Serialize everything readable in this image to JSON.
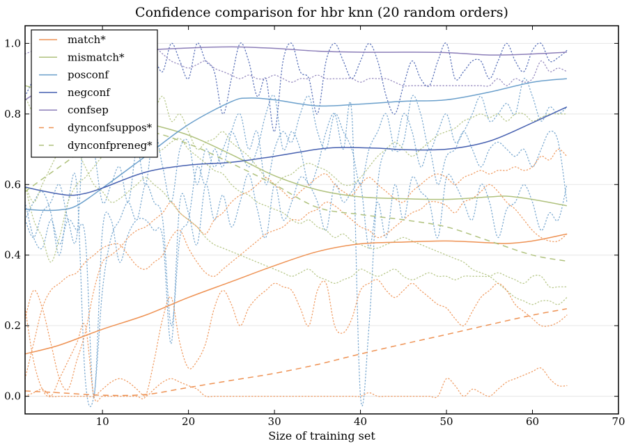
{
  "chart_data": {
    "type": "line",
    "title": "Confidence comparison for hbr knn (20 random orders)",
    "xlabel": "Size of training set",
    "ylabel": "",
    "xlim": [
      1,
      70
    ],
    "ylim": [
      -0.05,
      1.05
    ],
    "xticks": [
      10,
      20,
      30,
      40,
      50,
      60,
      70
    ],
    "yticks": [
      0.0,
      0.2,
      0.4,
      0.6,
      0.8,
      1.0
    ],
    "xtick_labels": [
      "10",
      "20",
      "30",
      "40",
      "50",
      "60",
      "70"
    ],
    "ytick_labels": [
      "0.0",
      "0.2",
      "0.4",
      "0.6",
      "0.8",
      "1.0"
    ],
    "grid": "horizontal",
    "legend_position": "top-left",
    "series": [
      {
        "name": "match*",
        "style": "solid",
        "color": "#ee9152",
        "x": [
          1,
          5,
          10,
          15,
          20,
          25,
          30,
          35,
          40,
          45,
          50,
          55,
          57,
          60,
          64
        ],
        "y": [
          0.12,
          0.145,
          0.19,
          0.23,
          0.28,
          0.325,
          0.37,
          0.41,
          0.432,
          0.437,
          0.44,
          0.435,
          0.433,
          0.44,
          0.46
        ]
      },
      {
        "name": "mismatch*",
        "style": "solid",
        "color": "#afc17c",
        "x": [
          1,
          5,
          10,
          15,
          20,
          25,
          30,
          35,
          40,
          45,
          50,
          55,
          57,
          60,
          64
        ],
        "y": [
          0.88,
          0.855,
          0.81,
          0.775,
          0.74,
          0.685,
          0.625,
          0.585,
          0.565,
          0.56,
          0.558,
          0.565,
          0.567,
          0.558,
          0.54
        ]
      },
      {
        "name": "posconf",
        "style": "solid",
        "color": "#6a9fcb",
        "x": [
          1,
          3,
          5,
          7,
          10,
          15,
          20,
          25,
          27,
          30,
          35,
          40,
          45,
          50,
          55,
          60,
          64
        ],
        "y": [
          0.53,
          0.527,
          0.528,
          0.54,
          0.59,
          0.68,
          0.77,
          0.835,
          0.845,
          0.84,
          0.823,
          0.828,
          0.836,
          0.84,
          0.862,
          0.89,
          0.9
        ]
      },
      {
        "name": "negconf",
        "style": "solid",
        "color": "#4660b0",
        "x": [
          1,
          3,
          6,
          8,
          10,
          15,
          20,
          25,
          30,
          35,
          38,
          42,
          45,
          50,
          55,
          60,
          64
        ],
        "y": [
          0.593,
          0.582,
          0.57,
          0.575,
          0.59,
          0.635,
          0.655,
          0.663,
          0.68,
          0.7,
          0.705,
          0.703,
          0.699,
          0.7,
          0.723,
          0.775,
          0.82
        ]
      },
      {
        "name": "confsep",
        "style": "solid",
        "color": "#8b7db8",
        "x": [
          1,
          5,
          8,
          12,
          15,
          20,
          25,
          30,
          35,
          40,
          45,
          50,
          55,
          60,
          64
        ],
        "y": [
          0.84,
          0.9,
          0.93,
          0.965,
          0.98,
          0.987,
          0.99,
          0.986,
          0.978,
          0.975,
          0.975,
          0.974,
          0.967,
          0.97,
          0.975
        ]
      },
      {
        "name": "dynconfsuppos*",
        "style": "dashed",
        "color": "#ee9152",
        "x": [
          1,
          5,
          10,
          15,
          20,
          25,
          30,
          35,
          40,
          45,
          50,
          55,
          60,
          64
        ],
        "y": [
          0.015,
          0.01,
          0.003,
          0.005,
          0.025,
          0.045,
          0.065,
          0.09,
          0.12,
          0.148,
          0.175,
          0.203,
          0.23,
          0.248
        ]
      },
      {
        "name": "dynconfpreneg*",
        "style": "dashed",
        "color": "#afc17c",
        "x": [
          1,
          5,
          10,
          15,
          20,
          25,
          30,
          35,
          40,
          45,
          50,
          55,
          60,
          64
        ],
        "y": [
          0.58,
          0.65,
          0.73,
          0.75,
          0.715,
          0.66,
          0.6,
          0.535,
          0.515,
          0.5,
          0.48,
          0.44,
          0.4,
          0.383
        ]
      }
    ],
    "traces": [
      {
        "color": "#6a9fcb",
        "y": [
          0.55,
          0.45,
          0.42,
          0.5,
          0.43,
          0.5,
          0.47,
          0.45,
          0.0,
          0.47,
          0.5,
          0.38,
          0.46,
          0.5,
          0.5,
          0.47,
          0.45,
          0.15,
          0.55,
          0.52,
          0.43,
          0.6,
          0.5,
          0.57,
          0.48,
          0.55,
          0.63,
          0.53,
          0.45,
          0.6,
          0.5,
          0.55,
          0.62,
          0.6,
          0.55,
          0.47,
          0.6,
          0.55,
          0.58,
          0.6,
          0.42,
          0.55,
          0.45,
          0.6,
          0.5,
          0.62,
          0.58,
          0.55,
          0.45,
          0.62,
          0.6,
          0.55,
          0.5,
          0.6,
          0.55,
          0.45,
          0.53,
          0.55,
          0.6,
          0.55,
          0.47,
          0.52,
          0.5,
          0.6
        ]
      },
      {
        "color": "#6a9fcb",
        "y": [
          0.5,
          0.45,
          0.52,
          0.55,
          0.6,
          0.5,
          0.45,
          0.8,
          0.7,
          0.55,
          0.6,
          0.65,
          0.55,
          0.7,
          0.6,
          0.75,
          0.65,
          0.55,
          0.7,
          0.72,
          0.6,
          0.7,
          0.65,
          0.7,
          0.75,
          0.7,
          0.65,
          0.7,
          0.8,
          0.85,
          0.7,
          0.75,
          0.7,
          0.6,
          0.65,
          0.75,
          0.8,
          0.7,
          0.8,
          0.0,
          0.2,
          0.6,
          0.7,
          0.7,
          0.8,
          0.75,
          0.65,
          0.7,
          0.6,
          0.68,
          0.7,
          0.75,
          0.7,
          0.65,
          0.7,
          0.72,
          0.7,
          0.68,
          0.7,
          0.65,
          0.7,
          0.75,
          0.72,
          0.55
        ]
      },
      {
        "color": "#4660b0",
        "y": [
          0.85,
          0.9,
          0.95,
          0.98,
          0.9,
          0.92,
          0.95,
          0.85,
          0.9,
          0.95,
          1.0,
          0.95,
          1.0,
          0.98,
          0.9,
          0.95,
          0.92,
          1.0,
          0.95,
          0.9,
          1.0,
          0.95,
          0.92,
          0.8,
          0.9,
          1.0,
          0.95,
          0.85,
          0.9,
          0.75,
          0.95,
          1.0,
          0.92,
          0.9,
          0.8,
          0.95,
          1.0,
          0.95,
          0.9,
          0.95,
          1.0,
          0.95,
          0.85,
          0.8,
          0.88,
          0.95,
          0.9,
          0.88,
          0.95,
          1.0,
          0.9,
          0.92,
          0.95,
          0.95,
          0.9,
          0.95,
          1.0,
          0.95,
          0.92,
          0.98,
          1.0,
          0.95,
          0.96,
          0.98
        ]
      },
      {
        "color": "#6a9fcb",
        "y": [
          0.5,
          0.55,
          0.58,
          0.52,
          0.4,
          0.55,
          0.6,
          0.05,
          0.0,
          0.3,
          0.45,
          0.5,
          0.55,
          0.5,
          0.6,
          0.55,
          0.5,
          0.2,
          0.45,
          0.5,
          0.65,
          0.6,
          0.7,
          0.65,
          0.75,
          0.8,
          0.7,
          0.75,
          0.6,
          0.7,
          0.75,
          0.72,
          0.8,
          0.85,
          0.75,
          0.7,
          0.8,
          0.75,
          0.7,
          0.6,
          0.7,
          0.75,
          0.8,
          0.7,
          0.72,
          0.85,
          0.8,
          0.7,
          0.75,
          0.8,
          0.72,
          0.75,
          0.8,
          0.85,
          0.78,
          0.8,
          0.83,
          0.8,
          0.9,
          0.85,
          0.78,
          0.82,
          0.8,
          0.82
        ]
      },
      {
        "color": "#8b7db8",
        "y": [
          0.97,
          0.98,
          0.99,
          1.0,
          0.99,
          1.0,
          0.98,
          0.97,
          0.99,
          1.0,
          0.98,
          0.97,
          0.96,
          0.97,
          0.98,
          0.99,
          0.97,
          0.95,
          0.94,
          0.93,
          0.94,
          0.95,
          0.93,
          0.92,
          0.91,
          0.9,
          0.91,
          0.9,
          0.9,
          0.91,
          0.9,
          0.89,
          0.9,
          0.9,
          0.91,
          0.9,
          0.9,
          0.9,
          0.9,
          0.89,
          0.9,
          0.9,
          0.9,
          0.89,
          0.88,
          0.88,
          0.88,
          0.88,
          0.88,
          0.88,
          0.88,
          0.88,
          0.88,
          0.88,
          0.88,
          0.9,
          0.88,
          0.9,
          0.89,
          0.9,
          0.95,
          0.92,
          0.93,
          0.92
        ]
      },
      {
        "color": "#afc17c",
        "y": [
          0.6,
          0.55,
          0.6,
          0.65,
          0.7,
          0.75,
          0.8,
          0.9,
          0.85,
          0.75,
          0.8,
          0.85,
          0.7,
          0.75,
          0.72,
          0.8,
          0.85,
          0.78,
          0.8,
          0.75,
          0.7,
          0.72,
          0.73,
          0.75,
          0.72,
          0.7,
          0.68,
          0.65,
          0.62,
          0.6,
          0.62,
          0.63,
          0.65,
          0.66,
          0.65,
          0.64,
          0.62,
          0.6,
          0.6,
          0.62,
          0.65,
          0.68,
          0.7,
          0.72,
          0.7,
          0.68,
          0.7,
          0.72,
          0.74,
          0.75,
          0.76,
          0.78,
          0.79,
          0.8,
          0.79,
          0.8,
          0.78,
          0.8,
          0.8,
          0.78,
          0.79,
          0.8,
          0.8,
          0.8
        ]
      },
      {
        "color": "#afc17c",
        "y": [
          0.6,
          0.5,
          0.45,
          0.38,
          0.45,
          0.55,
          0.6,
          0.62,
          0.65,
          0.68,
          0.7,
          0.72,
          0.73,
          0.7,
          0.68,
          0.69,
          0.7,
          0.72,
          0.73,
          0.7,
          0.68,
          0.66,
          0.64,
          0.63,
          0.6,
          0.58,
          0.57,
          0.55,
          0.54,
          0.53,
          0.52,
          0.5,
          0.49,
          0.5,
          0.48,
          0.47,
          0.45,
          0.46,
          0.44,
          0.43,
          0.42,
          0.42,
          0.43,
          0.44,
          0.45,
          0.44,
          0.43,
          0.42,
          0.41,
          0.4,
          0.39,
          0.38,
          0.36,
          0.35,
          0.34,
          0.32,
          0.3,
          0.28,
          0.27,
          0.26,
          0.27,
          0.27,
          0.26,
          0.28
        ]
      },
      {
        "color": "#afc17c",
        "y": [
          0.85,
          0.8,
          0.78,
          0.82,
          0.8,
          0.75,
          0.7,
          0.65,
          0.6,
          0.58,
          0.55,
          0.56,
          0.58,
          0.6,
          0.62,
          0.6,
          0.58,
          0.55,
          0.52,
          0.5,
          0.48,
          0.45,
          0.43,
          0.42,
          0.41,
          0.4,
          0.39,
          0.38,
          0.37,
          0.36,
          0.35,
          0.34,
          0.35,
          0.36,
          0.34,
          0.33,
          0.32,
          0.33,
          0.34,
          0.36,
          0.35,
          0.34,
          0.35,
          0.36,
          0.34,
          0.33,
          0.34,
          0.35,
          0.34,
          0.34,
          0.33,
          0.34,
          0.34,
          0.34,
          0.34,
          0.35,
          0.34,
          0.33,
          0.32,
          0.34,
          0.34,
          0.31,
          0.31,
          0.31
        ]
      },
      {
        "color": "#ee9152",
        "y": [
          0.22,
          0.3,
          0.25,
          0.15,
          0.05,
          0.02,
          0.1,
          0.18,
          0.3,
          0.38,
          0.4,
          0.42,
          0.45,
          0.47,
          0.48,
          0.5,
          0.52,
          0.55,
          0.52,
          0.5,
          0.48,
          0.46,
          0.5,
          0.52,
          0.55,
          0.57,
          0.58,
          0.6,
          0.62,
          0.6,
          0.58,
          0.56,
          0.58,
          0.6,
          0.62,
          0.63,
          0.6,
          0.58,
          0.57,
          0.6,
          0.62,
          0.6,
          0.58,
          0.56,
          0.55,
          0.58,
          0.6,
          0.62,
          0.63,
          0.62,
          0.6,
          0.62,
          0.63,
          0.64,
          0.63,
          0.64,
          0.64,
          0.65,
          0.64,
          0.65,
          0.68,
          0.67,
          0.7,
          0.68
        ]
      },
      {
        "color": "#ee9152",
        "y": [
          0.05,
          0.15,
          0.25,
          0.3,
          0.32,
          0.34,
          0.35,
          0.38,
          0.4,
          0.42,
          0.43,
          0.43,
          0.4,
          0.37,
          0.36,
          0.38,
          0.4,
          0.45,
          0.47,
          0.42,
          0.38,
          0.35,
          0.34,
          0.36,
          0.38,
          0.4,
          0.42,
          0.44,
          0.46,
          0.47,
          0.48,
          0.5,
          0.5,
          0.52,
          0.53,
          0.55,
          0.54,
          0.52,
          0.5,
          0.48,
          0.47,
          0.45,
          0.46,
          0.48,
          0.5,
          0.52,
          0.53,
          0.55,
          0.55,
          0.54,
          0.52,
          0.55,
          0.56,
          0.58,
          0.6,
          0.58,
          0.55,
          0.53,
          0.5,
          0.47,
          0.45,
          0.44,
          0.44,
          0.46
        ]
      },
      {
        "color": "#ee9152",
        "y": [
          0.25,
          0.1,
          0.02,
          0.0,
          0.05,
          0.1,
          0.15,
          0.2,
          0.0,
          0.0,
          0.0,
          0.0,
          0.0,
          0.0,
          0.0,
          0.1,
          0.22,
          0.28,
          0.15,
          0.08,
          0.1,
          0.15,
          0.25,
          0.3,
          0.26,
          0.2,
          0.25,
          0.28,
          0.3,
          0.32,
          0.31,
          0.3,
          0.25,
          0.2,
          0.3,
          0.32,
          0.2,
          0.18,
          0.22,
          0.3,
          0.32,
          0.33,
          0.3,
          0.28,
          0.3,
          0.32,
          0.3,
          0.28,
          0.26,
          0.25,
          0.22,
          0.2,
          0.24,
          0.28,
          0.3,
          0.32,
          0.3,
          0.26,
          0.24,
          0.22,
          0.2,
          0.2,
          0.21,
          0.23
        ]
      },
      {
        "color": "#ee9152",
        "y": [
          0.0,
          0.01,
          0.02,
          0.0,
          0.0,
          0.0,
          0.0,
          0.0,
          0.0,
          0.02,
          0.04,
          0.05,
          0.04,
          0.02,
          0.0,
          0.02,
          0.04,
          0.05,
          0.04,
          0.03,
          0.02,
          0.0,
          0.0,
          0.0,
          0.0,
          0.0,
          0.0,
          0.0,
          0.0,
          0.0,
          0.0,
          0.0,
          0.0,
          0.0,
          0.0,
          0.0,
          0.0,
          0.0,
          0.0,
          0.0,
          0.01,
          0.0,
          0.0,
          0.0,
          0.0,
          0.0,
          0.0,
          0.0,
          0.0,
          0.05,
          0.03,
          0.0,
          0.02,
          0.01,
          0.0,
          0.02,
          0.04,
          0.05,
          0.06,
          0.07,
          0.08,
          0.05,
          0.03,
          0.03
        ]
      }
    ]
  }
}
